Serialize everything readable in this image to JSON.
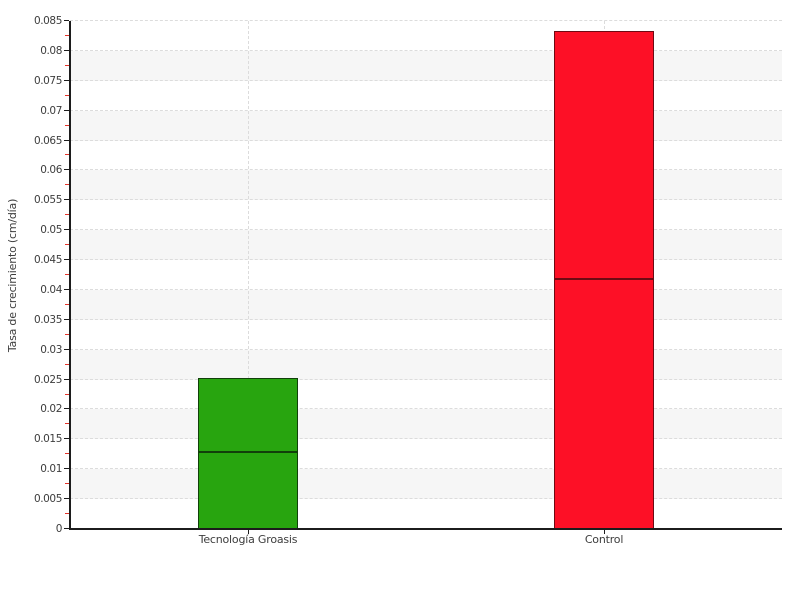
{
  "chart_data": {
    "type": "bar",
    "title": "",
    "categories": [
      "Tecnología Groasis",
      "Control"
    ],
    "values": [
      0.0253,
      0.0833
    ],
    "divider_values": [
      0.0127,
      0.0417
    ],
    "series_note": "each bar shows a darker horizontal divider line at half its total height",
    "bar_fill_colors": [
      "#28a50f",
      "#fd1026"
    ],
    "bar_border_colors": [
      "#11400a",
      "#6e0a13"
    ],
    "xlabel": "",
    "ylabel": "Tasa de crecimiento (cm/día)",
    "ylim": [
      0,
      0.085
    ],
    "ytick_step": 0.005,
    "ytick_labels": [
      "0",
      "0.005",
      "0.01",
      "0.015",
      "0.02",
      "0.025",
      "0.03",
      "0.035",
      "0.04",
      "0.045",
      "0.05",
      "0.055",
      "0.06",
      "0.065",
      "0.07",
      "0.075",
      "0.08",
      "0.085"
    ],
    "minor_ticks": "one red minor tick midway between each pair of major ticks",
    "legend": "none",
    "grid": {
      "horizontal": "dashed line at every 0.005",
      "vertical": "dashed line at each category center",
      "line_color": "#dcdcdc"
    },
    "plot_bands": {
      "colors": [
        "#ffffff",
        "#f6f6f6"
      ],
      "interval": 0.005,
      "top_band": "#ffffff"
    },
    "axis_color": "#1c1c1c",
    "major_tick_color": "#1c1c1c",
    "minor_tick_color": "#e3352b",
    "tick_label_color": "#3d3d3d",
    "background_color": "#ffffff"
  }
}
